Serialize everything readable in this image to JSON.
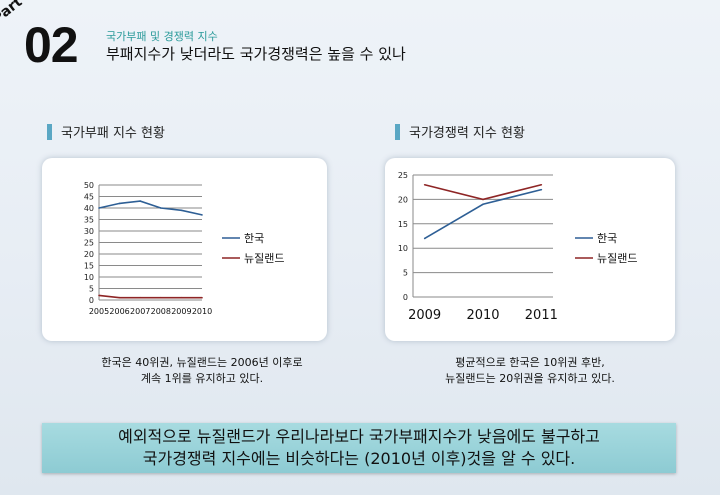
{
  "header": {
    "part": "Part",
    "number": "02",
    "subtitle": "국가부패 및 경쟁력 지수",
    "title": "부패지수가 낮더라도 국가경쟁력은 높을 수 있나"
  },
  "sections": [
    {
      "heading": "국가부패 지수 현황",
      "caption_lines": [
        "한국은 40위권, 뉴질랜드는 2006년 이후로",
        "계속 1위를 유지하고 있다."
      ]
    },
    {
      "heading": "국가경쟁력 지수 현황",
      "caption_lines": [
        "평균적으로 한국은 10위권 후반,",
        "뉴질랜드는 20위권을 유지하고 있다."
      ]
    }
  ],
  "bottom_lines": [
    "예외적으로 뉴질랜드가 우리나라보다 국가부패지수가 낮음에도 불구하고",
    "국가경쟁력 지수에는 비슷하다는 (2010년 이후)것을 알 수 있다."
  ],
  "colors": {
    "korea": "#2e5f95",
    "newzealand": "#8e2525",
    "accent_bar": "#5aa7c4"
  },
  "chart_data": [
    {
      "type": "line",
      "x": [
        "2005",
        "2006",
        "2007",
        "2008",
        "2009",
        "2010"
      ],
      "series": [
        {
          "name": "한국",
          "values": [
            40,
            42,
            43,
            40,
            39,
            37
          ],
          "color": "#2e5f95"
        },
        {
          "name": "뉴질랜드",
          "values": [
            2,
            1,
            1,
            1,
            1,
            1
          ],
          "color": "#8e2525"
        }
      ],
      "ylim": [
        0,
        50
      ],
      "yticks": [
        0,
        5,
        10,
        15,
        20,
        25,
        30,
        35,
        40,
        45,
        50
      ],
      "grid": true,
      "legend": "right"
    },
    {
      "type": "line",
      "x": [
        "2009",
        "2010",
        "2011"
      ],
      "series": [
        {
          "name": "한국",
          "values": [
            12,
            19,
            22
          ],
          "color": "#2e5f95"
        },
        {
          "name": "뉴질랜드",
          "values": [
            23,
            20,
            23
          ],
          "color": "#8e2525"
        }
      ],
      "ylim": [
        0,
        25
      ],
      "yticks": [
        0,
        5,
        10,
        15,
        20,
        25
      ],
      "grid": true,
      "legend": "right"
    }
  ]
}
